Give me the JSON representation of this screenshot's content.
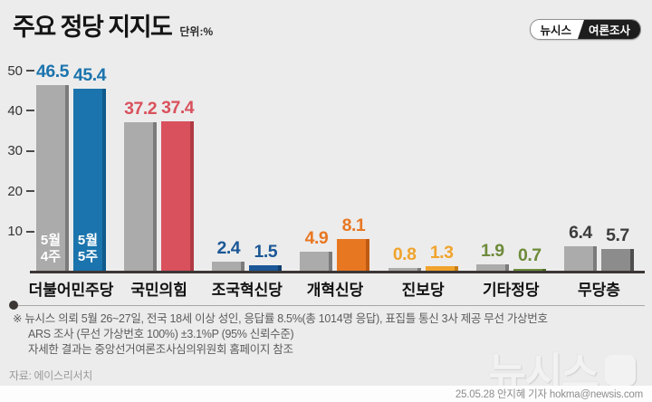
{
  "header": {
    "title": "주요 정당 지지도",
    "unit": "단위:%",
    "badge_left": "뉴시스",
    "badge_right": "여론조사"
  },
  "chart_data": {
    "type": "bar",
    "title": "주요 정당 지지도",
    "unit": "%",
    "categories": [
      "더불어민주당",
      "국민의힘",
      "조국혁신당",
      "개혁신당",
      "진보당",
      "기타정당",
      "무당층"
    ],
    "series": [
      {
        "name": "5월 4주",
        "color": "#ababab",
        "edge_color": "#7b7b7b",
        "values": [
          46.5,
          37.2,
          2.4,
          4.9,
          0.8,
          1.9,
          6.4
        ]
      },
      {
        "name": "5월 5주",
        "colors": [
          "#1b74ad",
          "#d9515c",
          "#1b5796",
          "#e87722",
          "#f0a32c",
          "#6d8b3a",
          "#8c8c8c"
        ],
        "edge_colors": [
          "#0f5a8c",
          "#b03a44",
          "#123e6e",
          "#c05a12",
          "#c87f16",
          "#4f6a26",
          "#4f4f4f"
        ],
        "values": [
          45.4,
          37.4,
          1.5,
          8.1,
          1.3,
          0.7,
          5.7
        ]
      }
    ],
    "value_label_colors": [
      "#1b74ad",
      "#d9515c",
      "#1b5796",
      "#e87722",
      "#f0a32c",
      "#6d8b3a",
      "#3c3c3c"
    ],
    "in_bar_labels": [
      "5월 4주",
      "5월 5주"
    ],
    "ylim": [
      0,
      50
    ],
    "yticks": [
      10,
      20,
      30,
      40,
      50
    ],
    "grid": false,
    "legend_position": "in-first-bars",
    "background": "#ececec",
    "baseline_color": "#3c3735"
  },
  "footnote": {
    "line1": "※ 뉴시스 의뢰 5월 26~27일, 전국 18세 이상 성인, 응답률 8.5%(총 1014명 응답), 표집틀 통신 3사 제공 무선 가상번호",
    "line2": "ARS 조사 (무선 가상번호 100%) ±3.1%P (95% 신뢰수준)",
    "line3": "자세한 결과는 중앙선거여론조사심의위원회 홈페이지 참조"
  },
  "source": "자료: 에이스리서치",
  "watermark": "뉴시스",
  "credit": "25.05.28 안지혜 기자 hokma@newsis.com"
}
